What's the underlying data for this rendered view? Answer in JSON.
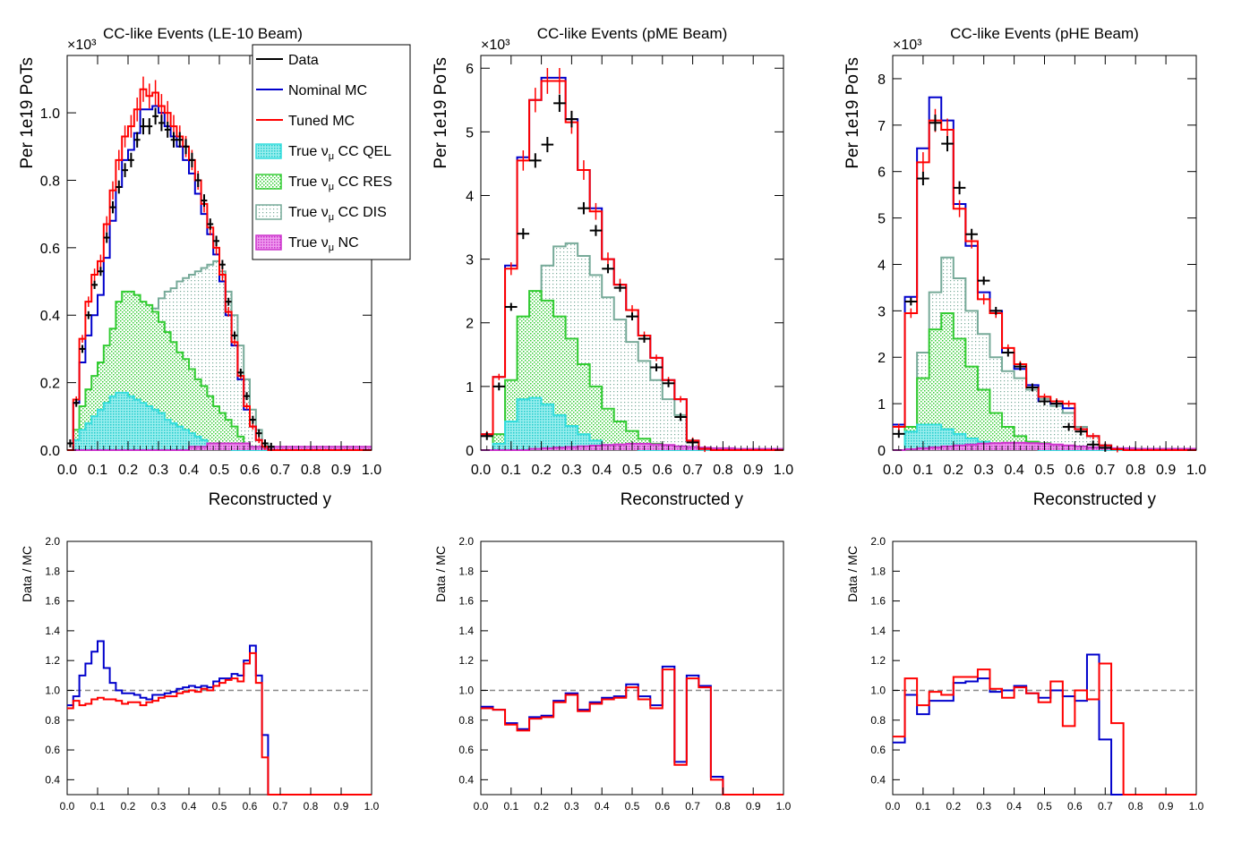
{
  "figure": {
    "legend": {
      "entries": [
        {
          "label": "Data",
          "style": "marker",
          "color": "#000000"
        },
        {
          "label": "Nominal MC",
          "style": "line",
          "color": "#0000cc"
        },
        {
          "label": "Tuned MC",
          "style": "line",
          "color": "#ff0000"
        },
        {
          "label": "True ν_μ CC QEL",
          "style": "fill",
          "color": "#33dddd"
        },
        {
          "label": "True ν_μ CC RES",
          "style": "fill",
          "color": "#33cc33"
        },
        {
          "label": "True ν_μ CC DIS",
          "style": "fill",
          "color": "#77aa99"
        },
        {
          "label": "True ν_μ NC",
          "style": "fill",
          "color": "#cc33cc"
        }
      ]
    },
    "colors": {
      "data": "#000000",
      "nominal": "#0000cc",
      "tuned": "#ff0000",
      "qel": "#33dddd",
      "res": "#33cc33",
      "dis": "#77aa99",
      "nc": "#cc33cc",
      "unity": "#888888"
    }
  },
  "chart_data": [
    {
      "type": "line",
      "title": "CC-like Events (LE-10 Beam)",
      "xlabel": "Reconstructed y",
      "ylabel": "Per 1e19 PoTs",
      "exponent_label": "×10³",
      "xlim": [
        0,
        1.0
      ],
      "ylim": [
        0,
        1.17
      ],
      "xticks": [
        "0.0",
        "0.1",
        "0.2",
        "0.3",
        "0.4",
        "0.5",
        "0.6",
        "0.7",
        "0.8",
        "0.9",
        "1.0"
      ],
      "yticks": [
        "0.0",
        "0.2",
        "0.4",
        "0.6",
        "0.8",
        "1.0"
      ],
      "bin_width": 0.02,
      "data": [
        0.02,
        0.14,
        0.3,
        0.4,
        0.49,
        0.53,
        0.63,
        0.72,
        0.78,
        0.83,
        0.86,
        0.92,
        0.96,
        0.96,
        0.99,
        0.97,
        0.95,
        0.92,
        0.92,
        0.9,
        0.86,
        0.8,
        0.74,
        0.67,
        0.62,
        0.55,
        0.44,
        0.34,
        0.23,
        0.16,
        0.09,
        0.05,
        0.02,
        0.01,
        0.0,
        0.0,
        0.0,
        0.0,
        0.0,
        0.0,
        0.0,
        0.0,
        0.0,
        0.0,
        0.0,
        0.0,
        0.0,
        0.0,
        0.0,
        0.0
      ],
      "nominal": [
        0.0,
        0.14,
        0.26,
        0.34,
        0.4,
        0.46,
        0.57,
        0.68,
        0.78,
        0.86,
        0.89,
        0.94,
        1.01,
        1.01,
        1.02,
        1.0,
        0.96,
        0.93,
        0.9,
        0.86,
        0.82,
        0.76,
        0.7,
        0.64,
        0.58,
        0.5,
        0.4,
        0.31,
        0.21,
        0.12,
        0.07,
        0.03,
        0.01,
        0.0,
        0.0,
        0.0,
        0.0,
        0.0,
        0.0,
        0.0,
        0.0,
        0.0,
        0.0,
        0.0,
        0.0,
        0.0,
        0.0,
        0.0,
        0.0,
        0.0
      ],
      "tuned": [
        0.0,
        0.15,
        0.33,
        0.44,
        0.52,
        0.56,
        0.67,
        0.77,
        0.86,
        0.93,
        0.96,
        1.01,
        1.07,
        1.05,
        1.06,
        1.02,
        1.0,
        0.96,
        0.93,
        0.9,
        0.86,
        0.8,
        0.73,
        0.66,
        0.6,
        0.52,
        0.41,
        0.32,
        0.22,
        0.13,
        0.07,
        0.03,
        0.01,
        0.0,
        0.0,
        0.0,
        0.0,
        0.0,
        0.0,
        0.0,
        0.0,
        0.0,
        0.0,
        0.0,
        0.0,
        0.0,
        0.0,
        0.0,
        0.0,
        0.0
      ],
      "dis": [
        0.0,
        0.04,
        0.09,
        0.12,
        0.15,
        0.18,
        0.21,
        0.24,
        0.27,
        0.3,
        0.33,
        0.36,
        0.38,
        0.4,
        0.42,
        0.45,
        0.47,
        0.48,
        0.5,
        0.51,
        0.52,
        0.53,
        0.54,
        0.55,
        0.56,
        0.53,
        0.47,
        0.4,
        0.31,
        0.21,
        0.12,
        0.06,
        0.02,
        0.0,
        0.0,
        0.0,
        0.0,
        0.0,
        0.0,
        0.0,
        0.0,
        0.0,
        0.0,
        0.0,
        0.0,
        0.0,
        0.0,
        0.0,
        0.0,
        0.0
      ],
      "res": [
        0.0,
        0.06,
        0.13,
        0.18,
        0.22,
        0.26,
        0.31,
        0.36,
        0.44,
        0.47,
        0.47,
        0.46,
        0.44,
        0.43,
        0.41,
        0.38,
        0.35,
        0.32,
        0.29,
        0.27,
        0.24,
        0.21,
        0.19,
        0.16,
        0.13,
        0.11,
        0.09,
        0.07,
        0.04,
        0.02,
        0.01,
        0.0,
        0.0,
        0.0,
        0.0,
        0.0,
        0.0,
        0.0,
        0.0,
        0.0,
        0.0,
        0.0,
        0.0,
        0.0,
        0.0,
        0.0,
        0.0,
        0.0,
        0.0,
        0.0
      ],
      "qel": [
        0.0,
        0.03,
        0.06,
        0.08,
        0.1,
        0.12,
        0.14,
        0.16,
        0.17,
        0.17,
        0.16,
        0.15,
        0.14,
        0.13,
        0.12,
        0.11,
        0.09,
        0.08,
        0.07,
        0.06,
        0.05,
        0.04,
        0.03,
        0.02,
        0.02,
        0.01,
        0.01,
        0.0,
        0.0,
        0.0,
        0.0,
        0.0,
        0.0,
        0.0,
        0.0,
        0.0,
        0.0,
        0.0,
        0.0,
        0.0,
        0.0,
        0.0,
        0.0,
        0.0,
        0.0,
        0.0,
        0.0,
        0.0,
        0.0,
        0.0
      ],
      "nc": [
        0.0,
        0.0,
        0.0,
        0.0,
        0.0,
        0.0,
        0.0,
        0.0,
        0.0,
        0.0,
        0.0,
        0.0,
        0.0,
        0.0,
        0.0,
        0.0,
        0.0,
        0.0,
        0.0,
        0.0,
        0.01,
        0.01,
        0.01,
        0.02,
        0.02,
        0.02,
        0.02,
        0.02,
        0.02,
        0.02,
        0.01,
        0.01,
        0.01,
        0.01,
        0.01,
        0.01,
        0.01,
        0.01,
        0.01,
        0.01,
        0.01,
        0.01,
        0.01,
        0.01,
        0.01,
        0.01,
        0.01,
        0.01,
        0.01,
        0.01
      ],
      "ratio": {
        "ylabel": "Data / MC",
        "ylim": [
          0.3,
          2.0
        ],
        "yticks": [
          "0.4",
          "0.6",
          "0.8",
          "1.0",
          "1.2",
          "1.4",
          "1.6",
          "1.8",
          "2.0"
        ],
        "nominal": [
          0.9,
          0.96,
          1.1,
          1.18,
          1.26,
          1.33,
          1.15,
          1.05,
          1.0,
          0.98,
          0.98,
          0.97,
          0.95,
          0.94,
          0.97,
          0.97,
          0.98,
          0.99,
          1.01,
          1.02,
          1.03,
          1.02,
          1.03,
          1.02,
          1.06,
          1.08,
          1.08,
          1.11,
          1.1,
          1.2,
          1.3,
          1.1,
          0.7,
          0.0,
          0.0,
          0.0,
          0.0,
          0.0,
          0.0,
          0.0,
          0.0,
          0.0,
          0.0,
          0.0,
          0.0,
          0.0,
          0.0,
          0.0,
          0.0,
          0.0
        ],
        "tuned": [
          0.88,
          0.93,
          0.9,
          0.91,
          0.94,
          0.95,
          0.94,
          0.94,
          0.93,
          0.91,
          0.92,
          0.92,
          0.9,
          0.92,
          0.93,
          0.95,
          0.96,
          0.96,
          0.98,
          0.99,
          1.0,
          0.99,
          1.01,
          1.0,
          1.03,
          1.05,
          1.07,
          1.08,
          1.06,
          1.18,
          1.25,
          1.05,
          0.55,
          0.0,
          0.0,
          0.0,
          0.0,
          0.0,
          0.0,
          0.0,
          0.0,
          0.0,
          0.0,
          0.0,
          0.0,
          0.0,
          0.0,
          0.0,
          0.0,
          0.0
        ]
      }
    },
    {
      "type": "line",
      "title": "CC-like Events (pME Beam)",
      "xlabel": "Reconstructed y",
      "ylabel": "Per 1e19 PoTs",
      "exponent_label": "×10³",
      "xlim": [
        0,
        1.0
      ],
      "ylim": [
        0,
        6.2
      ],
      "xticks": [
        "0.0",
        "0.1",
        "0.2",
        "0.3",
        "0.4",
        "0.5",
        "0.6",
        "0.7",
        "0.8",
        "0.9",
        "1.0"
      ],
      "yticks": [
        "0",
        "1",
        "2",
        "3",
        "4",
        "5",
        "6"
      ],
      "bin_width": 0.04,
      "data": [
        0.22,
        1.0,
        2.25,
        3.4,
        4.55,
        4.8,
        5.45,
        5.2,
        3.8,
        3.45,
        2.85,
        2.55,
        2.1,
        1.75,
        1.3,
        1.05,
        0.52,
        0.12,
        0.0,
        0.0,
        0.0,
        0.0,
        0.0,
        0.0,
        0.0
      ],
      "nominal": [
        0.25,
        1.15,
        2.9,
        4.6,
        5.5,
        5.85,
        5.85,
        5.2,
        4.4,
        3.8,
        3.0,
        2.6,
        2.2,
        1.8,
        1.45,
        1.1,
        0.8,
        0.15,
        0.02,
        0.0,
        0.0,
        0.0,
        0.0,
        0.0,
        0.0
      ],
      "tuned": [
        0.25,
        1.15,
        2.85,
        4.55,
        5.5,
        5.8,
        5.8,
        5.15,
        4.4,
        3.75,
        3.0,
        2.6,
        2.2,
        1.8,
        1.45,
        1.1,
        0.8,
        0.15,
        0.02,
        0.0,
        0.0,
        0.0,
        0.0,
        0.0,
        0.0
      ],
      "dis": [
        0.0,
        0.25,
        0.9,
        1.65,
        2.35,
        2.9,
        3.2,
        3.25,
        3.05,
        2.75,
        2.4,
        2.05,
        1.7,
        1.4,
        1.1,
        0.8,
        0.55,
        0.12,
        0.02,
        0.0,
        0.0,
        0.0,
        0.0,
        0.0,
        0.0
      ],
      "res": [
        0.0,
        0.25,
        1.1,
        2.1,
        2.5,
        2.35,
        2.1,
        1.75,
        1.35,
        1.0,
        0.65,
        0.45,
        0.3,
        0.18,
        0.1,
        0.05,
        0.02,
        0.0,
        0.0,
        0.0,
        0.0,
        0.0,
        0.0,
        0.0,
        0.0
      ],
      "qel": [
        0.0,
        0.1,
        0.45,
        0.8,
        0.82,
        0.72,
        0.55,
        0.38,
        0.25,
        0.15,
        0.08,
        0.04,
        0.02,
        0.0,
        0.0,
        0.0,
        0.0,
        0.0,
        0.0,
        0.0,
        0.0,
        0.0,
        0.0,
        0.0,
        0.0
      ],
      "nc": [
        0.0,
        0.0,
        0.0,
        0.0,
        0.02,
        0.03,
        0.04,
        0.05,
        0.06,
        0.07,
        0.08,
        0.09,
        0.1,
        0.1,
        0.09,
        0.08,
        0.06,
        0.05,
        0.04,
        0.03,
        0.03,
        0.02,
        0.02,
        0.02,
        0.02
      ],
      "ratio": {
        "ylabel": "Data / MC",
        "ylim": [
          0.3,
          2.0
        ],
        "yticks": [
          "0.4",
          "0.6",
          "0.8",
          "1.0",
          "1.2",
          "1.4",
          "1.6",
          "1.8",
          "2.0"
        ],
        "nominal": [
          0.89,
          0.87,
          0.78,
          0.74,
          0.82,
          0.83,
          0.93,
          0.98,
          0.87,
          0.92,
          0.95,
          0.96,
          1.04,
          0.96,
          0.9,
          1.16,
          0.52,
          1.1,
          1.03,
          0.42,
          0.0,
          0.0,
          0.0,
          0.0,
          0.0
        ],
        "tuned": [
          0.88,
          0.87,
          0.77,
          0.73,
          0.81,
          0.82,
          0.92,
          0.97,
          0.86,
          0.91,
          0.94,
          0.95,
          1.02,
          0.94,
          0.88,
          1.14,
          0.5,
          1.08,
          1.02,
          0.4,
          0.0,
          0.0,
          0.0,
          0.0,
          0.0
        ]
      }
    },
    {
      "type": "line",
      "title": "CC-like Events (pHE Beam)",
      "xlabel": "Reconstructed y",
      "ylabel": "Per 1e19 PoTs",
      "exponent_label": "×10³",
      "xlim": [
        0,
        1.0
      ],
      "ylim": [
        0,
        8.5
      ],
      "xticks": [
        "0.0",
        "0.1",
        "0.2",
        "0.3",
        "0.4",
        "0.5",
        "0.6",
        "0.7",
        "0.8",
        "0.9",
        "1.0"
      ],
      "yticks": [
        "0",
        "1",
        "2",
        "3",
        "4",
        "5",
        "6",
        "7",
        "8"
      ],
      "bin_width": 0.04,
      "data": [
        0.35,
        3.2,
        5.85,
        7.05,
        6.6,
        5.65,
        4.65,
        3.65,
        3.0,
        2.1,
        1.8,
        1.35,
        1.05,
        1.0,
        0.5,
        0.4,
        0.12,
        0.05,
        0.0,
        0.0,
        0.0,
        0.0,
        0.0,
        0.0,
        0.0
      ],
      "nominal": [
        0.55,
        3.3,
        6.5,
        7.6,
        7.1,
        5.3,
        4.4,
        3.4,
        3.0,
        2.1,
        1.75,
        1.4,
        1.05,
        1.0,
        0.9,
        0.45,
        0.3,
        0.1,
        0.02,
        0.0,
        0.0,
        0.0,
        0.0,
        0.0,
        0.0
      ],
      "tuned": [
        0.5,
        2.95,
        6.2,
        7.1,
        6.9,
        5.2,
        4.5,
        3.25,
        2.95,
        2.2,
        1.85,
        1.35,
        1.15,
        1.05,
        1.0,
        0.45,
        0.3,
        0.1,
        0.02,
        0.0,
        0.0,
        0.0,
        0.0,
        0.0,
        0.0
      ],
      "dis": [
        0.0,
        0.5,
        2.1,
        3.4,
        4.15,
        3.7,
        3.0,
        2.5,
        2.0,
        1.7,
        1.55,
        1.3,
        1.1,
        0.95,
        0.8,
        0.5,
        0.3,
        0.1,
        0.02,
        0.0,
        0.0,
        0.0,
        0.0,
        0.0,
        0.0
      ],
      "res": [
        0.0,
        0.5,
        1.55,
        2.6,
        2.95,
        2.4,
        1.8,
        1.3,
        0.8,
        0.5,
        0.3,
        0.18,
        0.15,
        0.1,
        0.05,
        0.02,
        0.0,
        0.0,
        0.0,
        0.0,
        0.0,
        0.0,
        0.0,
        0.0,
        0.0
      ],
      "qel": [
        0.0,
        0.4,
        0.55,
        0.55,
        0.45,
        0.35,
        0.25,
        0.18,
        0.1,
        0.05,
        0.03,
        0.02,
        0.0,
        0.0,
        0.0,
        0.0,
        0.0,
        0.0,
        0.0,
        0.0,
        0.0,
        0.0,
        0.0,
        0.0,
        0.0
      ],
      "nc": [
        0.0,
        0.02,
        0.04,
        0.06,
        0.08,
        0.1,
        0.12,
        0.14,
        0.15,
        0.16,
        0.16,
        0.15,
        0.14,
        0.12,
        0.1,
        0.08,
        0.06,
        0.05,
        0.04,
        0.04,
        0.03,
        0.03,
        0.03,
        0.03,
        0.03
      ],
      "ratio": {
        "ylabel": "Data / MC",
        "ylim": [
          0.3,
          2.0
        ],
        "yticks": [
          "0.4",
          "0.6",
          "0.8",
          "1.0",
          "1.2",
          "1.4",
          "1.6",
          "1.8",
          "2.0"
        ],
        "nominal": [
          0.65,
          0.97,
          0.84,
          0.93,
          0.93,
          1.05,
          1.06,
          1.08,
          0.99,
          1.0,
          1.03,
          0.98,
          0.95,
          1.0,
          0.96,
          0.93,
          1.24,
          0.67,
          0.3,
          0.0,
          0.0,
          0.0,
          0.0,
          0.0,
          0.0
        ],
        "tuned": [
          0.69,
          1.08,
          0.9,
          0.99,
          0.97,
          1.09,
          1.09,
          1.14,
          1.01,
          0.95,
          1.02,
          0.98,
          0.92,
          1.06,
          0.76,
          1.0,
          0.94,
          1.18,
          0.78,
          0.3,
          0.0,
          0.0,
          0.0,
          0.0,
          0.0
        ]
      }
    }
  ]
}
